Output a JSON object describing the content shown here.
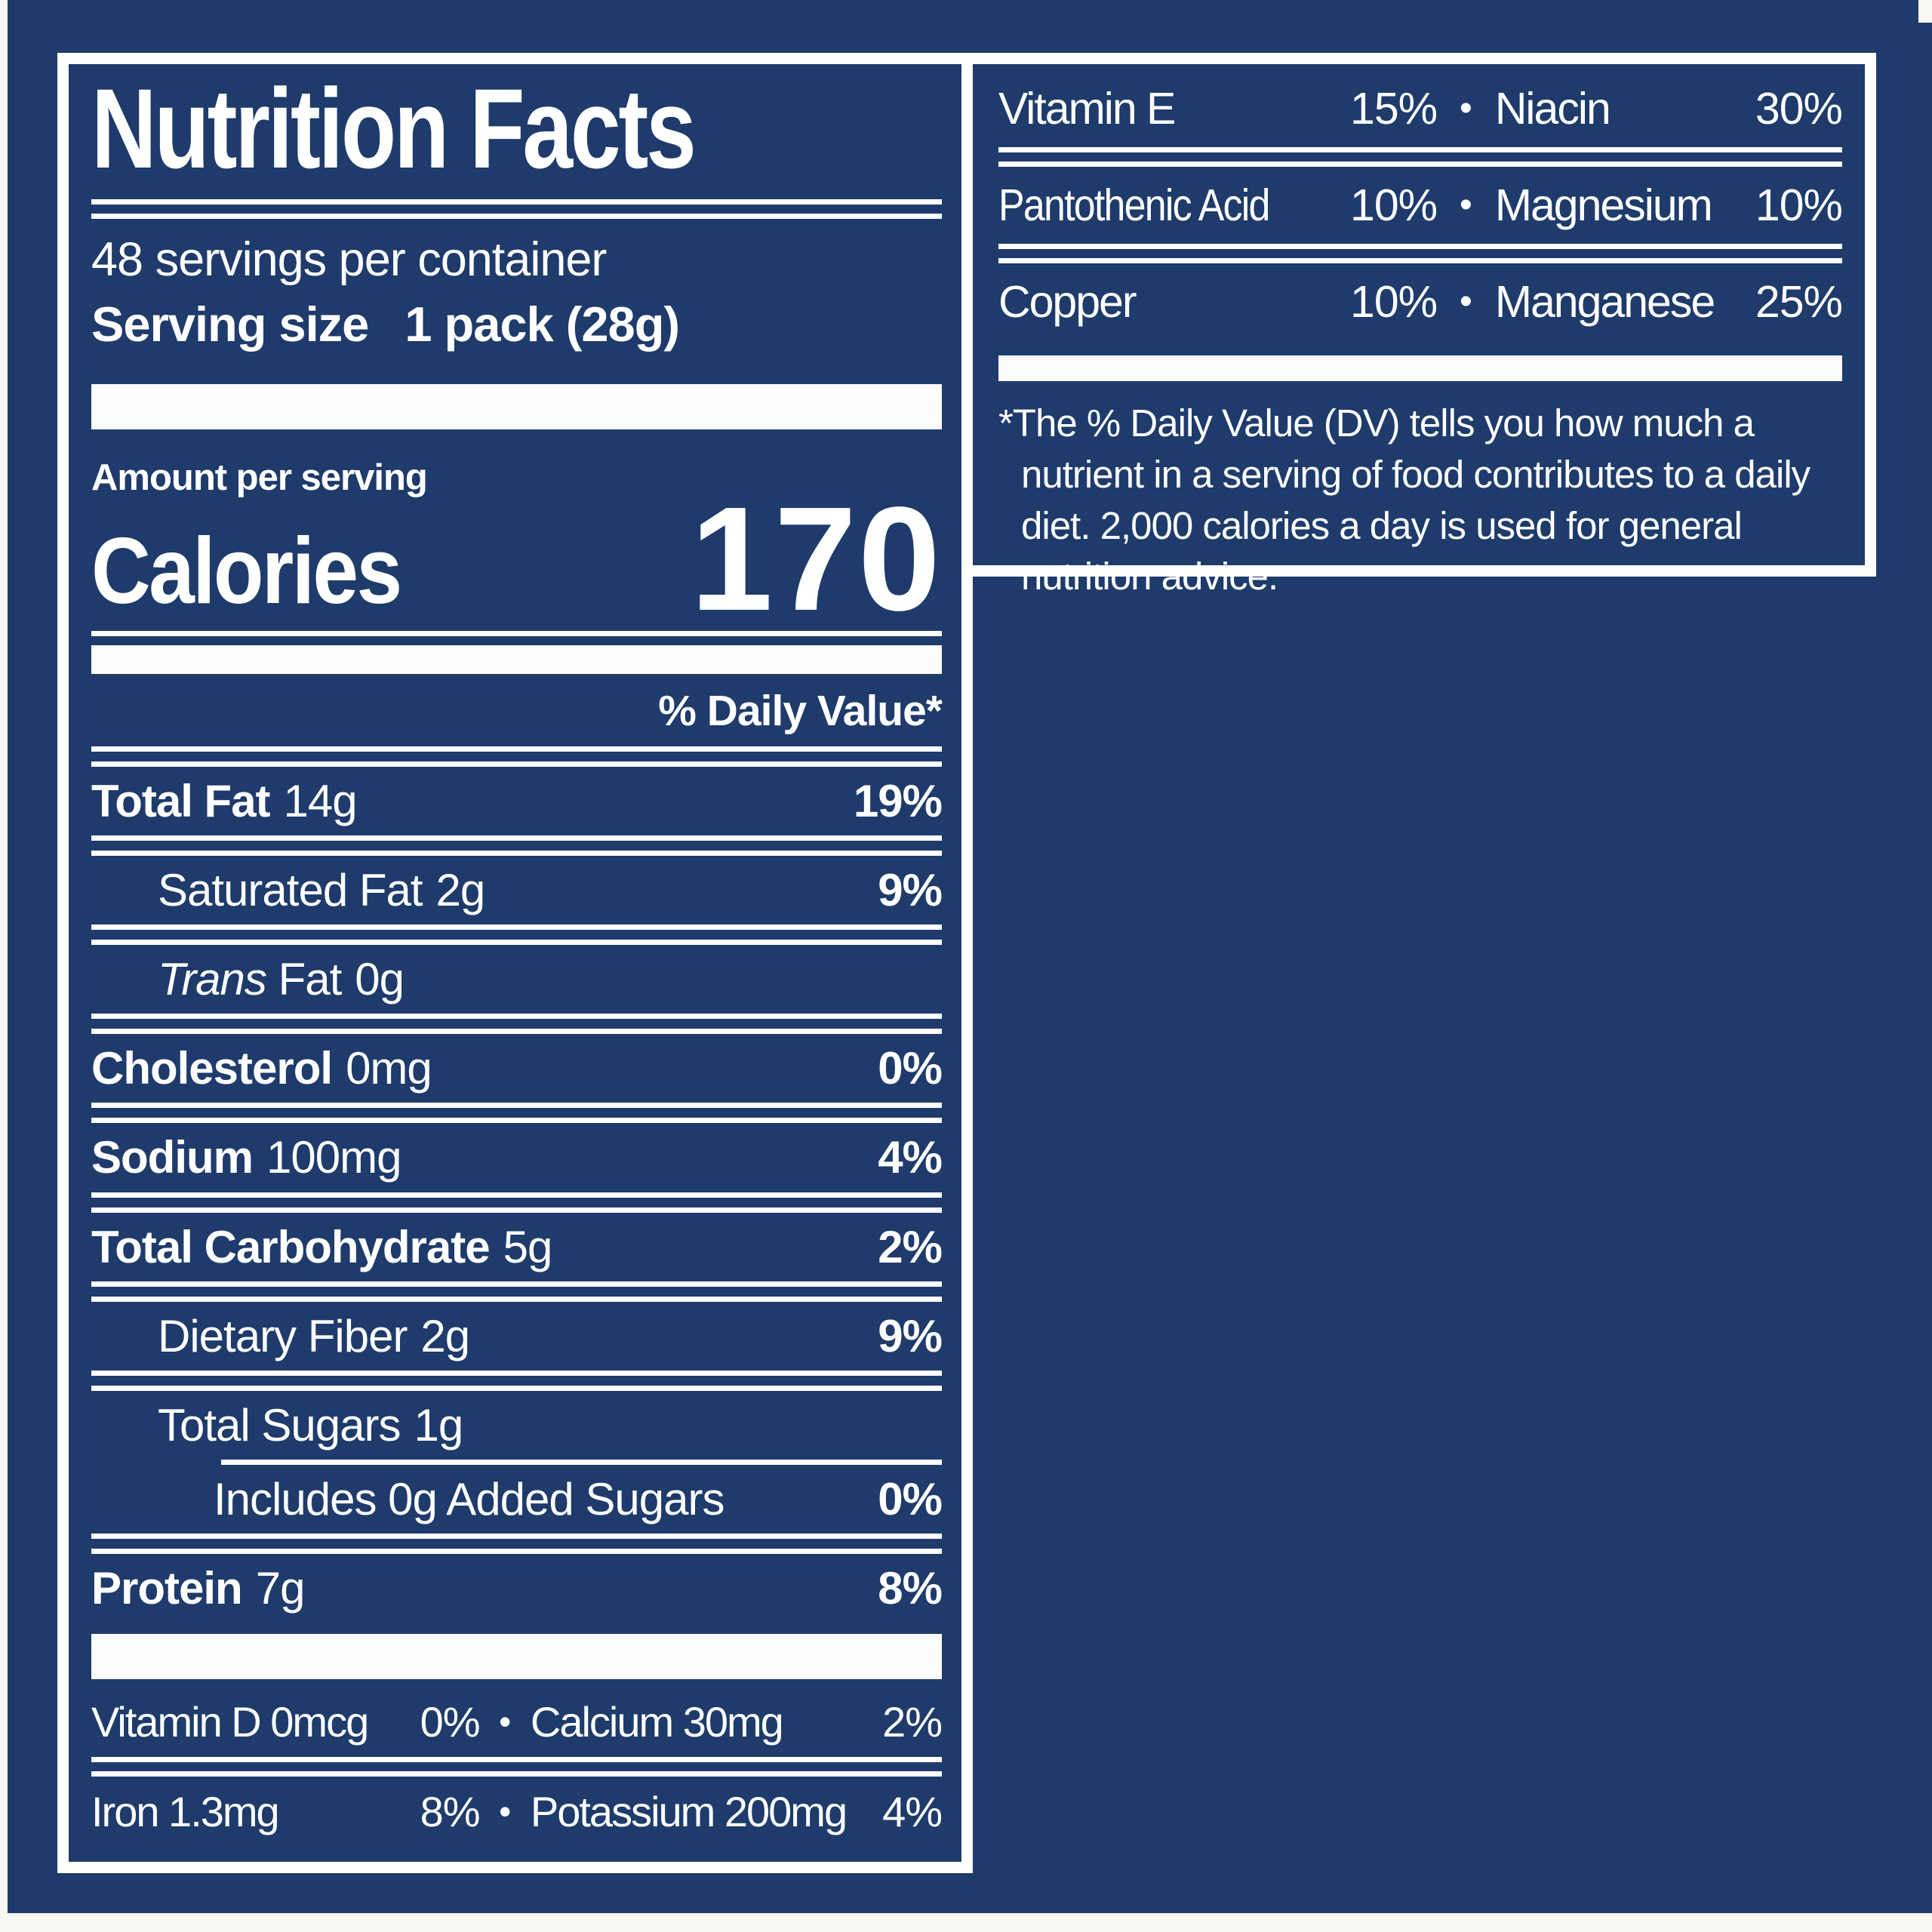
{
  "colors": {
    "background": "#1e3b6b",
    "text": "#ffffff",
    "rule": "#ffffff"
  },
  "label": {
    "title": "Nutrition Facts",
    "servings_per_container": "48 servings per container",
    "serving_size_label": "Serving size",
    "serving_size_value": "1 pack (28g)",
    "amount_per_serving": "Amount per serving",
    "calories_label": "Calories",
    "calories_value": "170",
    "daily_value_header": "% Daily Value*"
  },
  "nutrients": [
    {
      "label": "Total Fat",
      "amount": "14g",
      "percent": "19%"
    },
    {
      "label": "Saturated Fat",
      "amount": "2g",
      "percent": "9%"
    },
    {
      "label_italic": "Trans",
      "label": " Fat",
      "amount": "0g",
      "percent": ""
    },
    {
      "label": "Cholesterol",
      "amount": "0mg",
      "percent": "0%"
    },
    {
      "label": "Sodium",
      "amount": "100mg",
      "percent": "4%"
    },
    {
      "label": "Total Carbohydrate",
      "amount": "5g",
      "percent": "2%"
    },
    {
      "label": "Dietary Fiber",
      "amount": "2g",
      "percent": "9%"
    },
    {
      "label": "Total Sugars",
      "amount": "1g",
      "percent": ""
    },
    {
      "label": "Includes 0g Added Sugars",
      "amount": "",
      "percent": "0%"
    },
    {
      "label": "Protein",
      "amount": "7g",
      "percent": "8%"
    }
  ],
  "bullet": "•",
  "left_micronutrients": [
    {
      "name1": "Vitamin D 0mcg",
      "pct1": "0%",
      "name2": "Calcium 30mg",
      "pct2": "2%"
    },
    {
      "name1": "Iron 1.3mg",
      "pct1": "8%",
      "name2": "Potassium 200mg",
      "pct2": "4%"
    }
  ],
  "right_micronutrients": [
    {
      "name1": "Vitamin E",
      "pct1": "15%",
      "name2": "Niacin",
      "pct2": "30%"
    },
    {
      "name1": "Pantothenic Acid",
      "pct1": "10%",
      "name2": "Magnesium",
      "pct2": "10%"
    },
    {
      "name1": "Copper",
      "pct1": "10%",
      "name2": "Manganese",
      "pct2": "25%"
    }
  ],
  "footnote": "*The % Daily Value (DV) tells you how much a nutrient in a serving of food contributes to a daily diet. 2,000 calories a day is used for general nutrition advice."
}
